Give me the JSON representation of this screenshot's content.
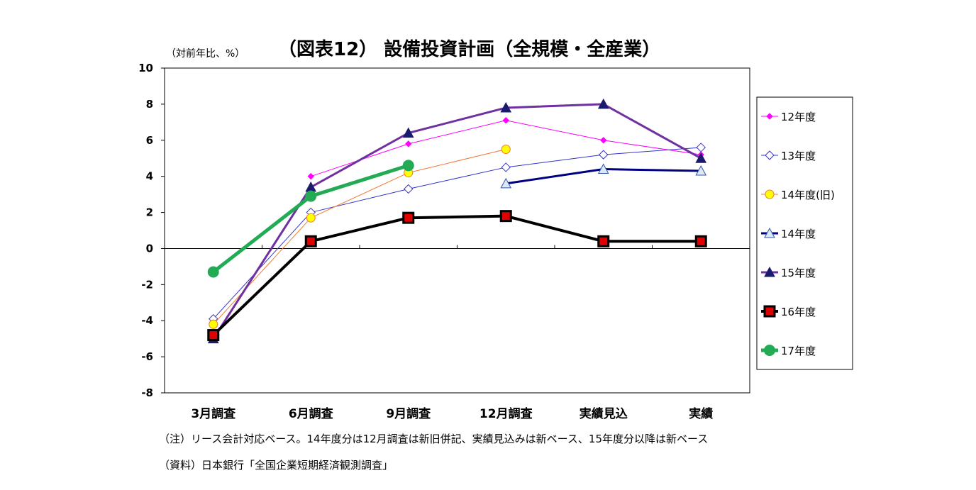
{
  "chart_data": {
    "type": "line",
    "title": "（図表12） 設備投資計画（全規模・全産業）",
    "unit_label": "（対前年比、%）",
    "categories": [
      "3月調査",
      "6月調査",
      "9月調査",
      "12月調査",
      "実績見込",
      "実績"
    ],
    "ylim": [
      -8,
      10
    ],
    "yticks": [
      10,
      8,
      6,
      4,
      2,
      0,
      -2,
      -4,
      -6,
      -8
    ],
    "grid": false,
    "legend_position": "right",
    "series": [
      {
        "name": "12年度",
        "values": [
          null,
          4.0,
          5.8,
          7.1,
          6.0,
          5.2
        ],
        "color": "#ff00ff",
        "marker": "diamond-filled",
        "line_width": 1
      },
      {
        "name": "13年度",
        "values": [
          -3.9,
          2.0,
          3.3,
          4.5,
          5.2,
          5.6
        ],
        "color": "#3333cc",
        "marker": "diamond-open",
        "line_width": 1
      },
      {
        "name": "14年度(旧)",
        "values": [
          -4.2,
          1.7,
          4.2,
          5.5,
          null,
          null
        ],
        "color": "#f07830",
        "marker": "circle-yellow",
        "line_width": 1
      },
      {
        "name": "14年度",
        "values": [
          null,
          null,
          null,
          3.6,
          4.4,
          4.3
        ],
        "color": "#000080",
        "marker": "triangle-open",
        "line_width": 3
      },
      {
        "name": "15年度",
        "values": [
          -5.0,
          3.4,
          6.4,
          7.8,
          8.0,
          5.0
        ],
        "color": "#7030a0",
        "marker": "triangle-filled",
        "line_width": 3
      },
      {
        "name": "16年度",
        "values": [
          -4.8,
          0.4,
          1.7,
          1.8,
          0.4,
          0.4
        ],
        "color": "#000000",
        "marker": "square-red",
        "line_width": 4
      },
      {
        "name": "17年度",
        "values": [
          -1.3,
          2.9,
          4.6,
          null,
          null,
          null
        ],
        "color": "#22aa55",
        "marker": "circle-green",
        "line_width": 5
      }
    ]
  },
  "notes": {
    "note1": "（注）リース会計対応ベース。14年度分は12月調査は新旧併記、実績見込みは新ベース、15年度分以降は新ベース",
    "source": "（資料）日本銀行「全国企業短期経済観測調査」"
  }
}
